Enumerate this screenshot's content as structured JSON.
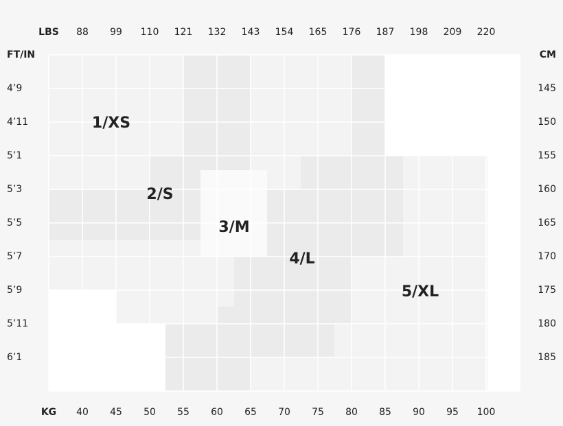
{
  "lbs": {
    "label": "LBS",
    "ticks": [
      88,
      99,
      110,
      121,
      132,
      143,
      154,
      165,
      176,
      187,
      198,
      209,
      220
    ]
  },
  "kg": {
    "label": "KG",
    "ticks": [
      40,
      45,
      50,
      55,
      60,
      65,
      70,
      75,
      80,
      85,
      90,
      95,
      100
    ]
  },
  "height_ft": {
    "label": "FT/IN",
    "ticks": [
      "4’9",
      "4’11",
      "5’1",
      "5’3",
      "5’5",
      "5’7",
      "5’9",
      "5’11",
      "6’1"
    ]
  },
  "height_cm": {
    "label": "CM",
    "ticks": [
      145,
      150,
      155,
      160,
      165,
      170,
      175,
      180,
      185
    ]
  },
  "sizes": [
    "1/XS",
    "2/S",
    "3/M",
    "4/L",
    "5/XL"
  ]
}
